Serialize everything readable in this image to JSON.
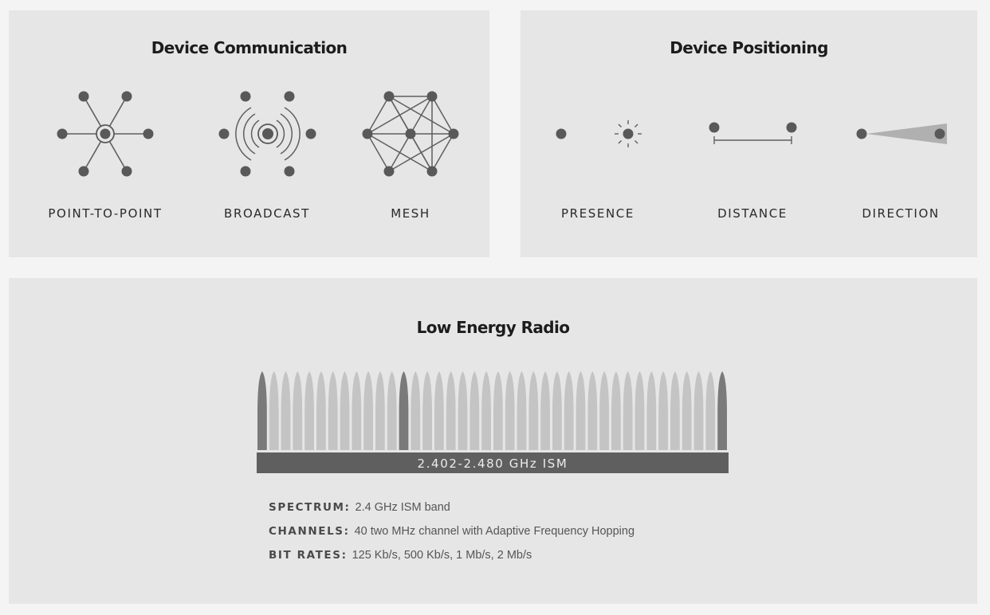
{
  "communication": {
    "title": "Device Communication",
    "items": [
      {
        "label": "POINT-TO-POINT",
        "icon": "point-to-point-icon"
      },
      {
        "label": "BROADCAST",
        "icon": "broadcast-icon"
      },
      {
        "label": "MESH",
        "icon": "mesh-icon"
      }
    ]
  },
  "positioning": {
    "title": "Device Positioning",
    "items": [
      {
        "label": "PRESENCE",
        "icon": "presence-icon"
      },
      {
        "label": "DISTANCE",
        "icon": "distance-icon"
      },
      {
        "label": "DIRECTION",
        "icon": "direction-icon"
      }
    ]
  },
  "radio": {
    "title": "Low Energy Radio",
    "band_label": "2.402-2.480 GHz ISM",
    "channel_count": 40,
    "advertising_channel_positions": [
      0,
      12,
      39
    ],
    "specs": [
      {
        "key": "SPECTRUM:",
        "value": "2.4 GHz ISM band"
      },
      {
        "key": "CHANNELS:",
        "value": "40 two MHz channel with Adaptive Frequency Hopping"
      },
      {
        "key": "BIT RATES:",
        "value": "125 Kb/s, 500 Kb/s, 1 Mb/s, 2 Mb/s"
      }
    ]
  },
  "colors": {
    "panel": "#e6e6e6",
    "dot": "#595959",
    "channel_light": "#c4c4c4",
    "channel_dark": "#7a7a7a",
    "band_bar": "#5f5f5f",
    "band_text": "#ececec"
  }
}
